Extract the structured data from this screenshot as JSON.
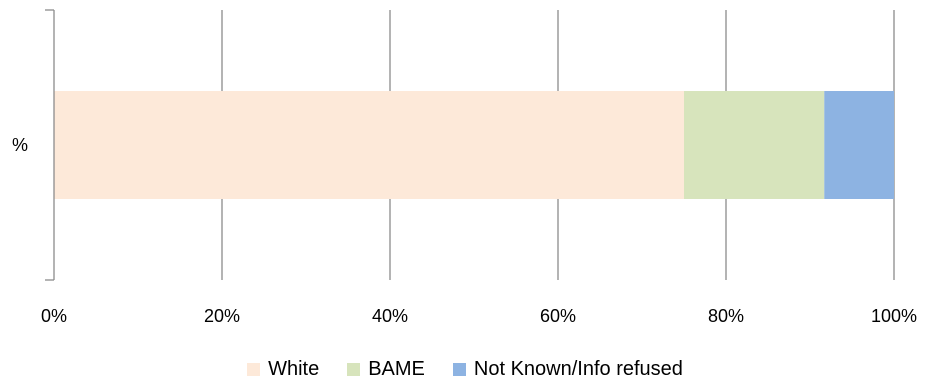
{
  "chart_data": {
    "type": "bar",
    "orientation": "horizontal",
    "stacked": "100%",
    "categories": [
      "%"
    ],
    "series": [
      {
        "name": "White",
        "values": [
          75
        ],
        "color": "#FDE9D9"
      },
      {
        "name": "BAME",
        "values": [
          16.7
        ],
        "color": "#D7E4BC"
      },
      {
        "name": "Not Known/Info refused",
        "values": [
          8.3
        ],
        "color": "#8DB3E2"
      }
    ],
    "x_ticks": [
      "0%",
      "20%",
      "40%",
      "60%",
      "80%",
      "100%"
    ],
    "xlim": [
      0,
      100
    ],
    "grid": true,
    "legend_position": "bottom"
  }
}
